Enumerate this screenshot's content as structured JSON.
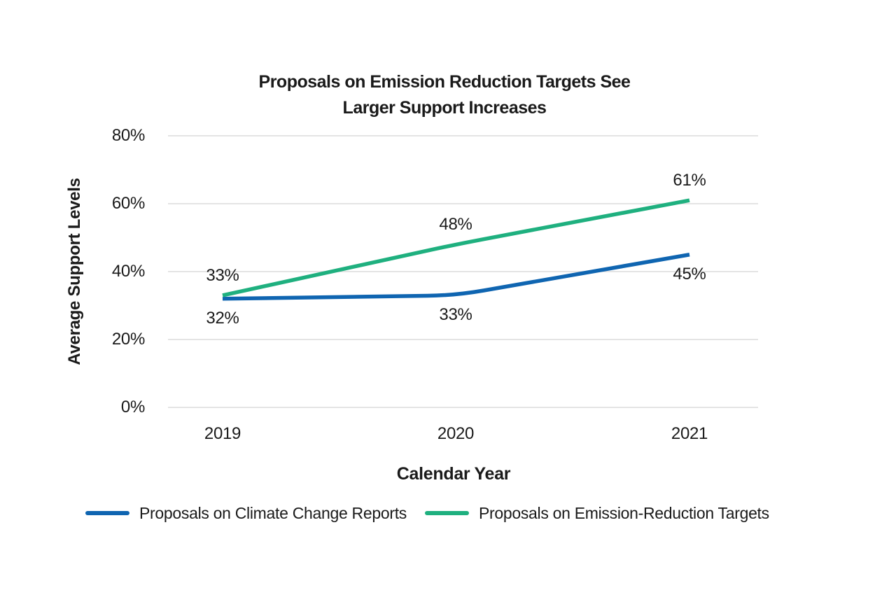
{
  "title": {
    "line1": "Proposals on Emission Reduction Targets See",
    "line2": "Larger Support Increases"
  },
  "chart_data": {
    "type": "line",
    "title": "Proposals on Emission Reduction Targets See Larger Support Increases",
    "xlabel": "Calendar Year",
    "ylabel": "Average Support Levels",
    "categories": [
      "2019",
      "2020",
      "2021"
    ],
    "series": [
      {
        "name": "Proposals on Climate Change Reports",
        "values": [
          32,
          33,
          45
        ],
        "color": "#0f65b1",
        "label_position": "below"
      },
      {
        "name": "Proposals on Emission-Reduction Targets",
        "values": [
          33,
          48,
          61
        ],
        "color": "#1fb07f",
        "label_position": "above"
      }
    ],
    "data_label_format": "{v}%",
    "data_labels": [
      "32%",
      "33%",
      "45%",
      "33%",
      "48%",
      "61%"
    ],
    "ylim": [
      0,
      80
    ],
    "yticks": [
      0,
      20,
      40,
      60,
      80
    ],
    "ytick_labels": [
      "0%",
      "20%",
      "40%",
      "60%",
      "80%"
    ],
    "grid": "horizontal",
    "legend_position": "bottom"
  },
  "colors": {
    "background": "#ffffff",
    "grid": "#dcdcdc",
    "text": "#1a1a1a",
    "series_blue": "#0f65b1",
    "series_green": "#1fb07f"
  }
}
